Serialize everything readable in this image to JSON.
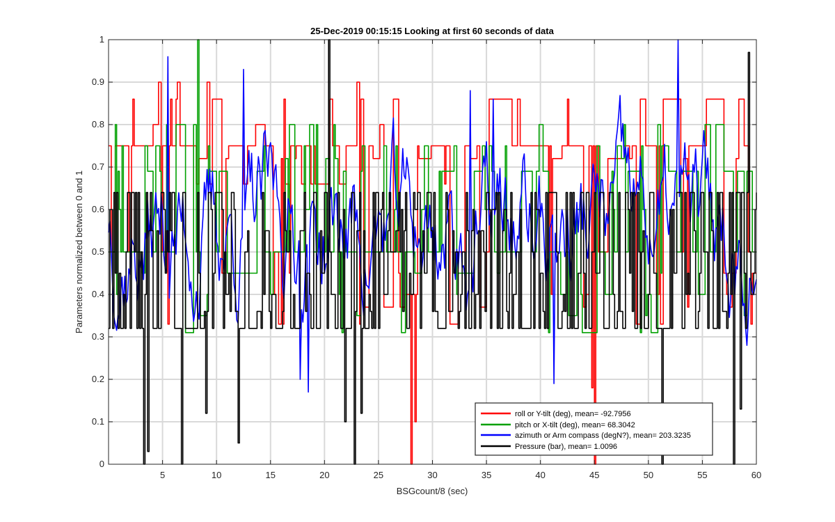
{
  "chart_data": {
    "type": "line",
    "title": "25-Dec-2019 00:15:15 Looking at first 60 seconds of data",
    "xlabel": "BSGcount/8 (sec)",
    "ylabel": "Parameters normalized between 0 and 1",
    "xlim": [
      0,
      60
    ],
    "ylim": [
      0,
      1
    ],
    "xticks": [
      5,
      10,
      15,
      20,
      25,
      30,
      35,
      40,
      45,
      50,
      55,
      60
    ],
    "yticks": [
      0,
      0.1,
      0.2,
      0.3,
      0.4,
      0.5,
      0.6,
      0.7,
      0.8,
      0.9,
      1
    ],
    "grid": true,
    "legend_position": "bottom-right",
    "series": [
      {
        "name": "roll or Y-tilt (deg), mean= -92.7956",
        "color": "#ff0000",
        "levels": [
          0.75,
          0.72,
          0.8,
          0.86,
          0.9,
          0.66,
          0.5,
          0.45,
          0.4,
          0.37,
          0.33
        ],
        "seed": 11,
        "weights": [
          30,
          6,
          4,
          8,
          3,
          5,
          6,
          5,
          6,
          4,
          3
        ],
        "spikes": [
          {
            "x": 28.0,
            "y": 0.0
          },
          {
            "x": 45.0,
            "y": 0.0
          },
          {
            "x": 28.4,
            "y": 0.1
          },
          {
            "x": 44.8,
            "y": 0.18
          }
        ]
      },
      {
        "name": "pitch or X-tilt (deg), mean= 68.3042",
        "color": "#00a000",
        "levels": [
          0.5,
          0.69,
          0.72,
          0.75,
          0.8,
          0.6,
          0.45,
          0.4,
          0.35,
          0.31
        ],
        "seed": 23,
        "weights": [
          30,
          12,
          4,
          4,
          5,
          5,
          4,
          4,
          3,
          3
        ],
        "spikes": [
          {
            "x": 8.2,
            "y": 1.0
          },
          {
            "x": 19.2,
            "y": 0.8
          }
        ]
      },
      {
        "name": "azimuth or Arm compass (degN?), mean= 203.3235",
        "color": "#0000ff",
        "levels": [],
        "seed": 37,
        "weights": [],
        "spikes": [
          {
            "x": 52.8,
            "y": 1.0
          },
          {
            "x": 5.5,
            "y": 0.96
          },
          {
            "x": 12.5,
            "y": 0.93
          },
          {
            "x": 33.5,
            "y": 0.88
          },
          {
            "x": 35.6,
            "y": 0.86
          },
          {
            "x": 18.5,
            "y": 0.17
          },
          {
            "x": 41.2,
            "y": 0.19
          },
          {
            "x": 17.8,
            "y": 0.2
          }
        ]
      },
      {
        "name": "Pressure (bar), mean= 1.0096",
        "color": "#000000",
        "levels": [
          0.32,
          0.64,
          0.6,
          0.55,
          0.5,
          0.45,
          0.4,
          0.36
        ],
        "seed": 53,
        "weights": [
          20,
          18,
          5,
          5,
          5,
          5,
          5,
          5
        ],
        "spikes": [
          {
            "x": 20.4,
            "y": 1.0
          },
          {
            "x": 59.2,
            "y": 0.97
          },
          {
            "x": 3.2,
            "y": 0.0
          },
          {
            "x": 6.8,
            "y": 0.0
          },
          {
            "x": 22.8,
            "y": 0.0
          },
          {
            "x": 57.9,
            "y": 0.0
          },
          {
            "x": 51.3,
            "y": 0.0
          },
          {
            "x": 3.6,
            "y": 0.03
          },
          {
            "x": 9.0,
            "y": 0.12
          },
          {
            "x": 12.0,
            "y": 0.05
          },
          {
            "x": 21.9,
            "y": 0.1
          },
          {
            "x": 23.4,
            "y": 0.12
          },
          {
            "x": 58.5,
            "y": 0.13
          }
        ]
      }
    ]
  }
}
